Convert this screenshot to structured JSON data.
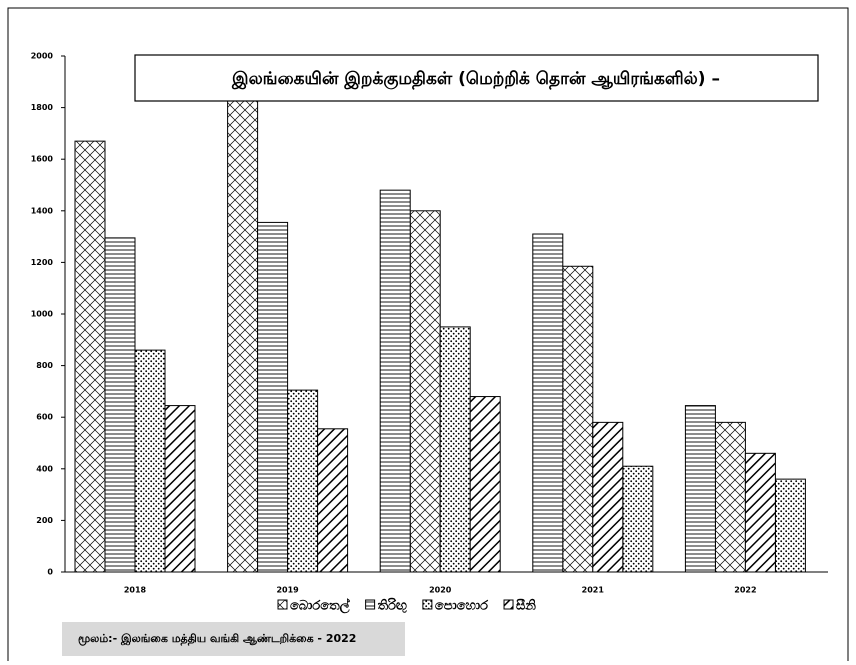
{
  "chart_data": {
    "type": "bar",
    "title": "இலங்கையின் இறக்குமதிகள் (மெற்றிக் தொன் ஆயிரங்களில்) –",
    "categories": [
      "2018",
      "2019",
      "2020",
      "2021",
      "2022"
    ],
    "series": [
      {
        "name": "බොරතෙල්",
        "pattern": "crosshatch",
        "color": "#000000",
        "values": [
          1670,
          1840,
          1400,
          1185,
          580
        ]
      },
      {
        "name": "තිරිඟු",
        "pattern": "horizontal",
        "color": "#000000",
        "values": [
          1295,
          1355,
          1480,
          1310,
          645
        ]
      },
      {
        "name": "පොහොර",
        "pattern": "dots",
        "color": "#000000",
        "values": [
          860,
          705,
          950,
          410,
          360
        ]
      },
      {
        "name": "සීනි",
        "pattern": "diagonal",
        "color": "#000000",
        "values": [
          645,
          555,
          680,
          580,
          460
        ]
      }
    ],
    "ylim": [
      0,
      2000
    ],
    "yticks": [
      0,
      200,
      400,
      600,
      800,
      1000,
      1200,
      1400,
      1600,
      1800,
      2000
    ],
    "source": "மூலம்:- இலங்கை மத்திய வங்கி ஆண்டறிக்கை - 2022"
  }
}
